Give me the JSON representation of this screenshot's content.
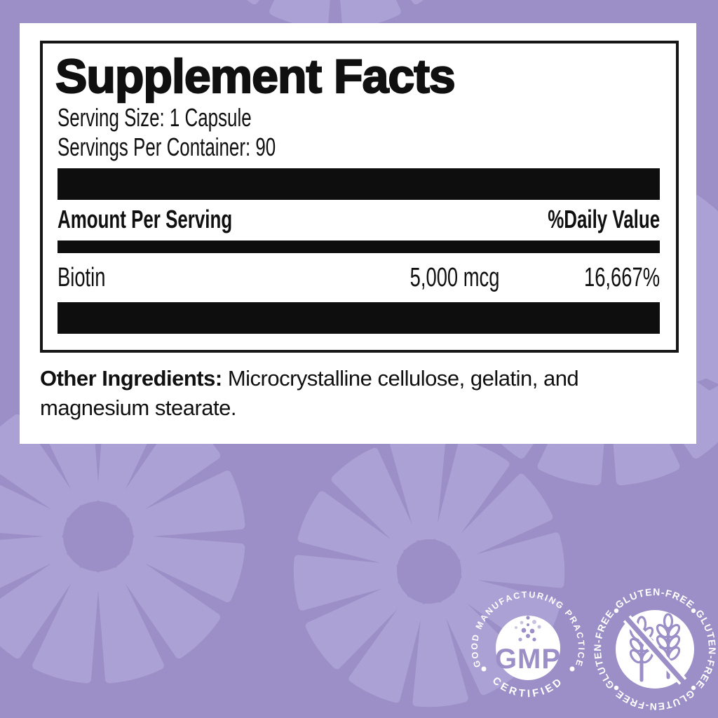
{
  "label_panel": {
    "title": "Supplement Facts",
    "serving_size": "Serving Size: 1 Capsule",
    "servings_per_container": "Servings Per Container: 90",
    "columns": {
      "amount": "Amount Per Serving",
      "daily_value": "%Daily Value"
    },
    "rows": [
      {
        "name": "Biotin",
        "amount": "5,000 mcg",
        "daily_value": "16,667%"
      }
    ],
    "other_ingredients_label": "Other Ingredients:",
    "other_ingredients_text": " Microcrystalline cellulose, gelatin, and magnesium stearate."
  },
  "badges": {
    "gmp": {
      "ring_text": "GOOD MANUFACTURING PRACTICE",
      "center_text": "GMP",
      "bottom_text": "CERTIFIED",
      "icon": "dots-burst-icon"
    },
    "gluten_free": {
      "ring_text": "GLUTEN-FREE",
      "icon": "crossed-wheat-icon"
    }
  },
  "colors": {
    "background": "#9C8FC7",
    "pattern_wheel": "#ACA1D4",
    "panel_background": "#FFFFFF",
    "panel_text": "#101010",
    "badge_disc": "#FFFFFF",
    "badge_glyph": "#9C8FC7"
  }
}
